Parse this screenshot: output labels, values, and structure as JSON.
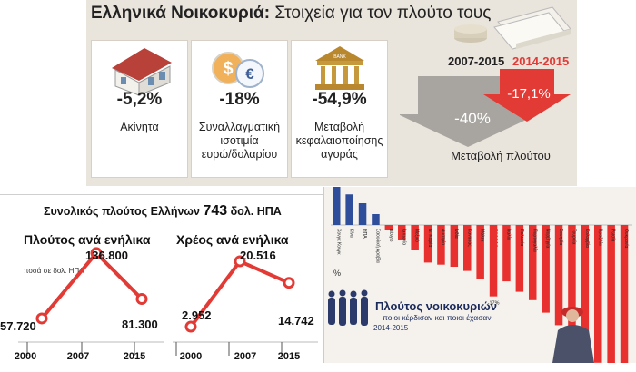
{
  "header": {
    "title_bold": "Ελληνικά Νοικοκυριά:",
    "title_rest": " Στοιχεία για τον πλούτο τους"
  },
  "cards": [
    {
      "value": "-5,2%",
      "label_lines": [
        "Ακίνητα"
      ]
    },
    {
      "value": "-18%",
      "label_lines": [
        "Συναλλαγματική",
        "ισοτιμία",
        "ευρώ/δολαρίου"
      ]
    },
    {
      "value": "-54,9%",
      "label_lines": [
        "Μεταβολή",
        "κεφαλαιοποίησης",
        "αγοράς"
      ]
    }
  ],
  "wealth_change": {
    "period_a": "2007-2015",
    "period_b": "2014-2015",
    "value_a": "-40%",
    "value_b": "-17,1%",
    "caption": "Μεταβολή πλούτου",
    "colors": {
      "grey": "#a8a5a0",
      "red": "#e23a35"
    }
  },
  "bank_sign": "BANK",
  "total": {
    "prefix": "Συνολικός πλούτος Ελλήνων ",
    "value": "743",
    "suffix": " δολ. ΗΠΑ"
  },
  "chart_data": [
    {
      "type": "line",
      "title": "Πλούτος ανά ενήλικα",
      "unit_note": "ποσά σε δολ. ΗΠΑ",
      "categories": [
        "2000",
        "2007",
        "2015"
      ],
      "values": [
        57720,
        136800,
        81300
      ],
      "labels": [
        "57.720",
        "136.800",
        "81.300"
      ],
      "ylim": [
        50000,
        140000
      ],
      "color": "#e23a35"
    },
    {
      "type": "line",
      "title": "Χρέος ανά ενήλικα",
      "categories": [
        "2000",
        "2007",
        "2015"
      ],
      "values": [
        2952,
        20516,
        14742
      ],
      "labels": [
        "2.952",
        "20.516",
        "14.742"
      ],
      "ylim": [
        1500,
        21500
      ],
      "color": "#e23a35"
    },
    {
      "type": "bar",
      "title": "Πλούτος νοικοκυριών",
      "subtitle": "ποιοι κέρδισαν και ποιοι έχασαν",
      "period": "2014-2015",
      "unit": "%",
      "categories": [
        "Χονγκ Κονγκ",
        "Κίνα",
        "ΗΠΑ",
        "Σαουδική Αραβία",
        "Βέλγιο",
        "Ιαπωνία",
        "Μεξικό",
        "Ν. Κορέα",
        "Αυστρία",
        "Ινδία",
        "Καναδάς",
        "Μάλτα",
        "ΕΛΛΑΔΑ",
        "Ιταλία",
        "Πολωνία",
        "Πορτογαλία",
        "Νορβηγία",
        "Σουηδία",
        "Τουρκία",
        "Κολομβία",
        "Βραζιλία",
        "Ρωσία",
        "Ουκρανία"
      ],
      "values": [
        6.5,
        4.5,
        3.2,
        1.6,
        -1.2,
        -3.5,
        -6,
        -9,
        -9.5,
        -10,
        -11,
        -13,
        -17.1,
        -13.5,
        -16,
        -18,
        -21,
        -24,
        -27,
        -30,
        -33,
        -36,
        -39
      ],
      "highlight": "ΕΛΛΑΔΑ",
      "highlight_label": "-17%",
      "colors": {
        "positive": "#2e4d9b",
        "negative": "#e8302e"
      }
    }
  ]
}
